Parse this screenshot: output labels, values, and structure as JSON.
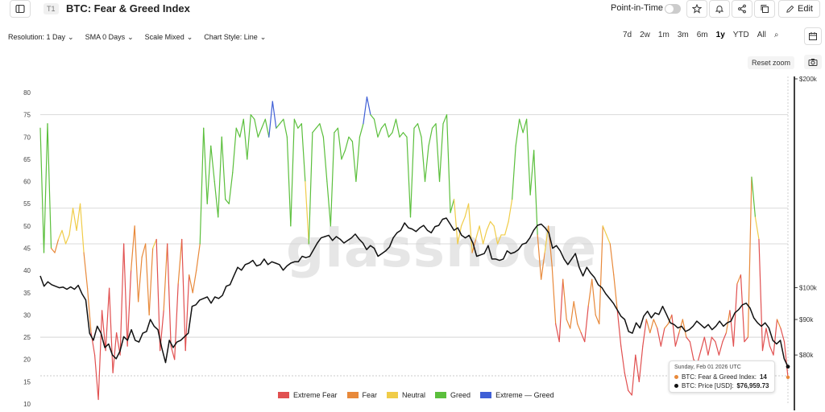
{
  "header": {
    "badge": "T1",
    "title": "BTC: Fear & Greed Index",
    "point_in_time_label": "Point-in-Time",
    "edit_label": "Edit",
    "icons": [
      "sidebar-icon",
      "star-icon",
      "bell-icon",
      "share-icon",
      "copy-icon",
      "pencil-icon"
    ]
  },
  "toolbar": {
    "resolution": "Resolution: 1 Day",
    "sma": "SMA 0 Days",
    "scale": "Scale Mixed",
    "chart_style": "Chart Style: Line"
  },
  "ranges": [
    "7d",
    "2w",
    "1m",
    "3m",
    "6m",
    "1y",
    "YTD",
    "All"
  ],
  "active_range": "1y",
  "reset_zoom": "Reset zoom",
  "watermark": "glassnode",
  "tooltip": {
    "date": "Sunday, Feb 01 2026 UTC",
    "fg_label": "BTC: Fear & Greed Index:",
    "fg_value": "14",
    "price_label": "BTC: Price [USD]:",
    "price_value": "$76,959.73"
  },
  "chart_data": {
    "type": "line",
    "title": "BTC: Fear & Greed Index",
    "left_axis": {
      "ticks": [
        10,
        15,
        20,
        25,
        30,
        35,
        40,
        45,
        50,
        55,
        60,
        65,
        70,
        75,
        80
      ],
      "range": [
        10,
        82
      ]
    },
    "right_axis": {
      "ticks": [
        "$80k",
        "$90k",
        "$100k",
        "$200k"
      ],
      "values": [
        80000,
        90000,
        100000,
        200000
      ],
      "scale": "log"
    },
    "thresholds": [
      {
        "value": 75
      },
      {
        "value": 54
      },
      {
        "value": 46
      },
      {
        "value": 25
      }
    ],
    "legend": [
      {
        "name": "Extreme Fear",
        "color": "#e15050"
      },
      {
        "name": "Fear",
        "color": "#e8893a"
      },
      {
        "name": "Neutral",
        "color": "#f0cc48"
      },
      {
        "name": "Greed",
        "color": "#5bbf3c"
      },
      {
        "name": "Extreme — Greed",
        "color": "#3f5fd6"
      }
    ],
    "series": [
      {
        "name": "BTC: Fear & Greed Index",
        "values": [
          72,
          44,
          73,
          45,
          44,
          47,
          49,
          46,
          48,
          54,
          49,
          55,
          44,
          36,
          26,
          21,
          11,
          31,
          22,
          36,
          17,
          26,
          21,
          46,
          23,
          40,
          50,
          33,
          43,
          46,
          30,
          45,
          47,
          22,
          31,
          46,
          23,
          20,
          37,
          47,
          22,
          39,
          35,
          40,
          46,
          72,
          55,
          68,
          60,
          52,
          70,
          56,
          55,
          62,
          72,
          70,
          74,
          65,
          75,
          74,
          70,
          72,
          74,
          70,
          78,
          72,
          73,
          74,
          70,
          50,
          74,
          72,
          73,
          60,
          46,
          71,
          72,
          73,
          70,
          60,
          50,
          71,
          72,
          65,
          67,
          70,
          69,
          60,
          70,
          73,
          79,
          75,
          74,
          70,
          72,
          73,
          70,
          71,
          74,
          70,
          71,
          70,
          52,
          72,
          73,
          70,
          60,
          68,
          72,
          73,
          60,
          73,
          75,
          53,
          56,
          46,
          50,
          52,
          55,
          44,
          47,
          50,
          46,
          49,
          51,
          50,
          46,
          48,
          48,
          51,
          56,
          68,
          74,
          71,
          74,
          57,
          67,
          48,
          38,
          44,
          50,
          41,
          28,
          24,
          38,
          29,
          27,
          33,
          28,
          26,
          24,
          32,
          38,
          30,
          28,
          50,
          48,
          46,
          39,
          31,
          23,
          17,
          13,
          12,
          21,
          15,
          23,
          29,
          26,
          29,
          27,
          23,
          27,
          28,
          30,
          23,
          26,
          29,
          25,
          24,
          20,
          19,
          22,
          25,
          21,
          25,
          24,
          21,
          24,
          26,
          31,
          23,
          37,
          39,
          24,
          25,
          61,
          52,
          47,
          22,
          27,
          23,
          21,
          29,
          27,
          24,
          16
        ],
        "colors_by_band": {
          "extreme_fear": "#e15050",
          "fear": "#e8893a",
          "neutral": "#f0cc48",
          "greed": "#5bbf3c",
          "extreme_greed": "#3f5fd6"
        }
      },
      {
        "name": "BTC: Price [USD]",
        "axis": "right",
        "values": [
          104000,
          100500,
          102000,
          101000,
          100500,
          100000,
          100200,
          99500,
          100300,
          99500,
          100800,
          98000,
          96000,
          86000,
          84000,
          88000,
          86000,
          82000,
          83000,
          80000,
          79000,
          81000,
          85000,
          84000,
          87000,
          84000,
          83500,
          86000,
          86500,
          90000,
          88000,
          87000,
          82000,
          78000,
          84000,
          82000,
          83500,
          84000,
          85000,
          86000,
          94000,
          94500,
          96000,
          96500,
          97000,
          95000,
          97000,
          96500,
          97500,
          100500,
          101000,
          104000,
          107000,
          106000,
          108000,
          108500,
          109500,
          107500,
          108000,
          110000,
          108000,
          109000,
          108500,
          108000,
          106000,
          107500,
          108500,
          109000,
          109000,
          111000,
          110500,
          111000,
          113500,
          116000,
          118000,
          118500,
          119000,
          117000,
          118500,
          117500,
          116000,
          117000,
          118000,
          119500,
          117500,
          116000,
          113500,
          115000,
          114000,
          111000,
          112000,
          113000,
          114500,
          118000,
          120000,
          121000,
          124000,
          122000,
          121500,
          120500,
          122000,
          123000,
          121000,
          120000,
          122500,
          123000,
          125500,
          126000,
          123500,
          121000,
          122000,
          119000,
          118000,
          119000,
          116000,
          111000,
          111500,
          112000,
          115000,
          110000,
          110000,
          109500,
          110000,
          113000,
          112000,
          112500,
          113500,
          115500,
          116000,
          118000,
          121000,
          123000,
          123500,
          122000,
          120000,
          114000,
          115000,
          113000,
          110000,
          108000,
          110000,
          112000,
          107000,
          104000,
          107000,
          105000,
          103500,
          101000,
          100000,
          98000,
          96500,
          95000,
          93000,
          91000,
          90000,
          86500,
          86000,
          89000,
          87500,
          91000,
          92500,
          90500,
          92000,
          91500,
          94000,
          91500,
          89000,
          88500,
          87500,
          88000,
          86500,
          87000,
          88000,
          89500,
          88500,
          87500,
          88500,
          87000,
          88000,
          89500,
          88000,
          89000,
          89500,
          92000,
          93000,
          94500,
          95000,
          93500,
          90500,
          89000,
          88000,
          89000,
          87500,
          84000,
          83000,
          84000,
          79000,
          76959
        ]
      }
    ]
  }
}
